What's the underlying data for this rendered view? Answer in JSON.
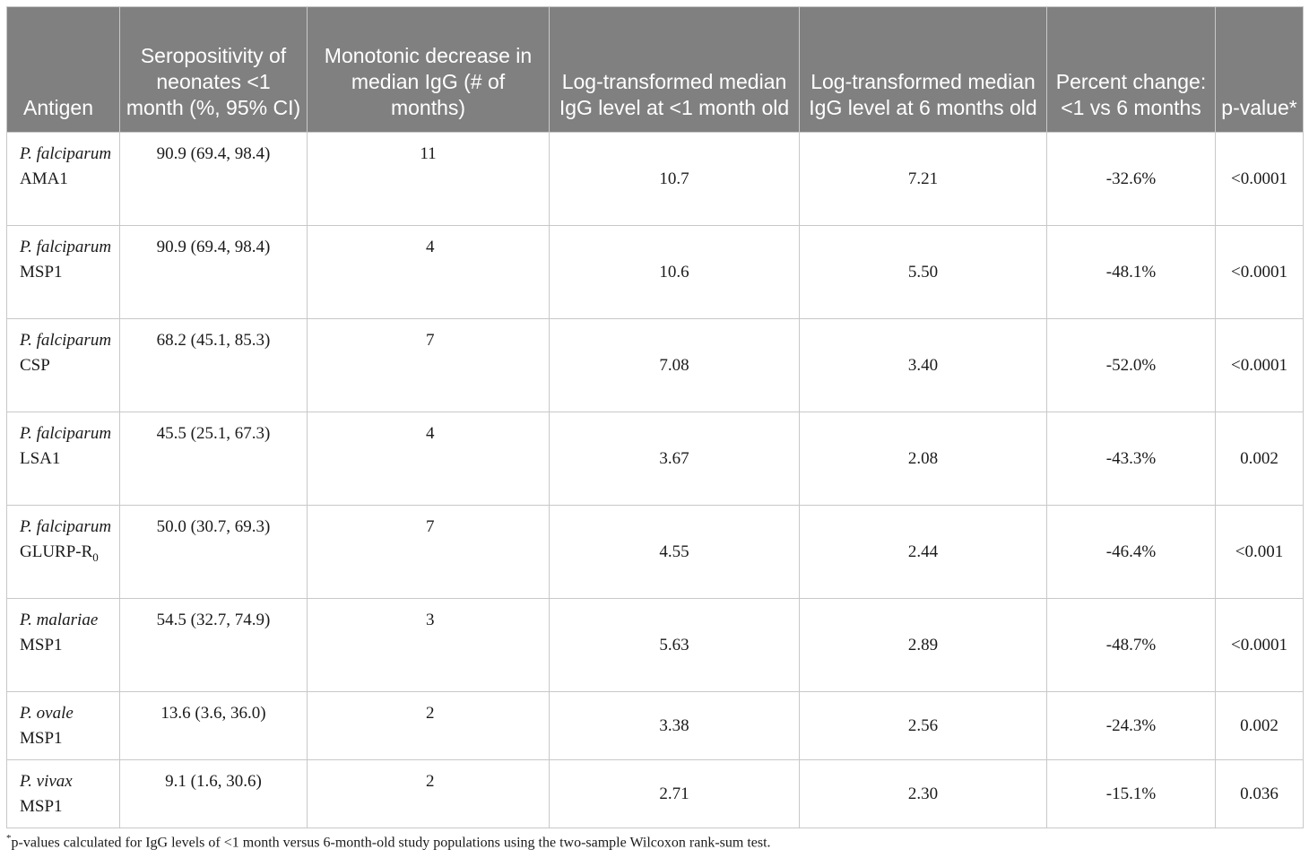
{
  "table": {
    "headers": [
      "Antigen",
      "Seropositivity of neonates <1 month (%, 95% CI)",
      "Monotonic decrease in median IgG (# of months)",
      "Log-transformed median IgG level at <1 month old",
      "Log-transformed median IgG level at 6 months old",
      "Percent change: <1 vs 6 months",
      "p-value*"
    ],
    "rows": [
      {
        "species": "P. falciparum",
        "antigen": "AMA1",
        "antigen_sub": "",
        "seropositivity": "90.9 (69.4, 98.4)",
        "monotonic_decrease": "11",
        "median_lt1": "10.7",
        "median_6": "7.21",
        "percent_change": "-32.6%",
        "p_value": "<0.0001"
      },
      {
        "species": "P. falciparum",
        "antigen": "MSP1",
        "antigen_sub": "",
        "seropositivity": "90.9 (69.4, 98.4)",
        "monotonic_decrease": "4",
        "median_lt1": "10.6",
        "median_6": "5.50",
        "percent_change": "-48.1%",
        "p_value": "<0.0001"
      },
      {
        "species": "P. falciparum",
        "antigen": "CSP",
        "antigen_sub": "",
        "seropositivity": "68.2 (45.1, 85.3)",
        "monotonic_decrease": "7",
        "median_lt1": "7.08",
        "median_6": "3.40",
        "percent_change": "-52.0%",
        "p_value": "<0.0001"
      },
      {
        "species": "P. falciparum",
        "antigen": "LSA1",
        "antigen_sub": "",
        "seropositivity": "45.5 (25.1, 67.3)",
        "monotonic_decrease": "4",
        "median_lt1": "3.67",
        "median_6": "2.08",
        "percent_change": "-43.3%",
        "p_value": "0.002"
      },
      {
        "species": "P. falciparum",
        "antigen": "GLURP-R",
        "antigen_sub": "0",
        "seropositivity": "50.0 (30.7, 69.3)",
        "monotonic_decrease": "7",
        "median_lt1": "4.55",
        "median_6": "2.44",
        "percent_change": "-46.4%",
        "p_value": "<0.001"
      },
      {
        "species": "P. malariae",
        "antigen": "MSP1",
        "antigen_sub": "",
        "seropositivity": "54.5 (32.7, 74.9)",
        "monotonic_decrease": "3",
        "median_lt1": "5.63",
        "median_6": "2.89",
        "percent_change": "-48.7%",
        "p_value": "<0.0001"
      },
      {
        "species": "P. ovale",
        "antigen": "MSP1",
        "antigen_sub": "",
        "seropositivity": "13.6 (3.6, 36.0)",
        "monotonic_decrease": "2",
        "median_lt1": "3.38",
        "median_6": "2.56",
        "percent_change": "-24.3%",
        "p_value": "0.002"
      },
      {
        "species": "P. vivax",
        "antigen": "MSP1",
        "antigen_sub": "",
        "seropositivity": "9.1 (1.6, 30.6)",
        "monotonic_decrease": "2",
        "median_lt1": "2.71",
        "median_6": "2.30",
        "percent_change": "-15.1%",
        "p_value": "0.036"
      }
    ]
  },
  "footnote": {
    "marker": "*",
    "text": "p-values calculated for IgG levels of <1 month versus 6-month-old study populations using the two-sample Wilcoxon rank-sum test."
  }
}
